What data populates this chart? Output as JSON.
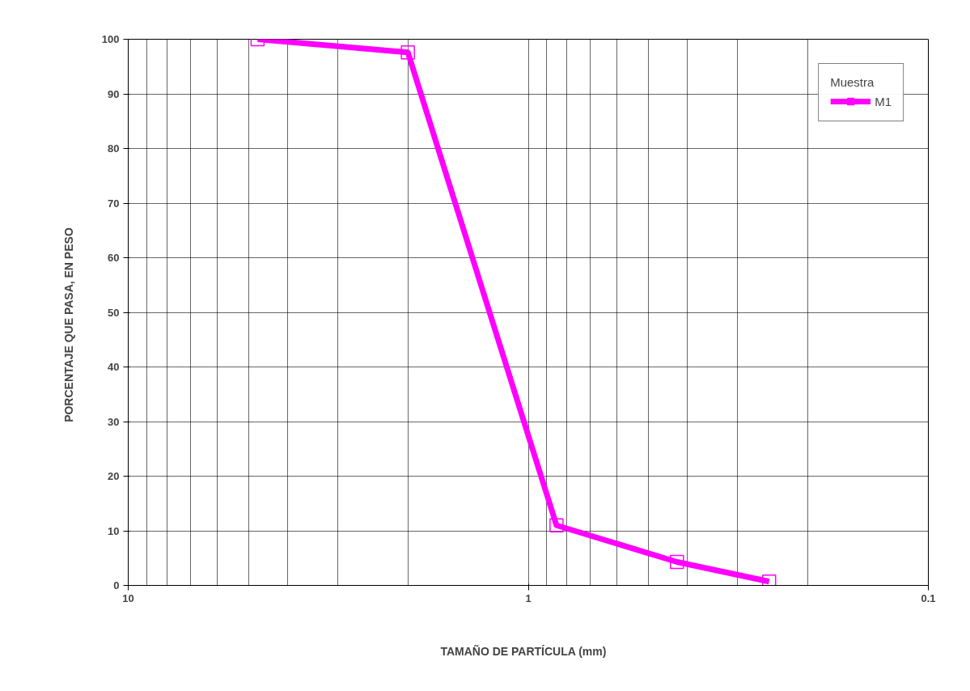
{
  "chart_data": {
    "type": "line",
    "xlabel": "TAMAÑO DE PARTÍCULA    (mm)",
    "ylabel": "PORCENTAJE   QUE   PASA,   EN   PESO",
    "legend_title": "Muestra",
    "legend": "top right",
    "grid": true,
    "log": "x",
    "marker": "square",
    "line_style": "solid",
    "xlim": [
      10,
      0.1
    ],
    "xticks": [
      10,
      1,
      0.1
    ],
    "ylim": [
      0,
      100
    ],
    "yticks": [
      0,
      10,
      20,
      30,
      40,
      50,
      60,
      70,
      80,
      90,
      100
    ],
    "series": [
      {
        "name": "M1",
        "color": "#ff00ff",
        "x": [
          4.75,
          2.0,
          0.85,
          0.425,
          0.25
        ],
        "values": [
          100,
          97.6,
          11.0,
          4.3,
          0.7
        ]
      }
    ]
  }
}
